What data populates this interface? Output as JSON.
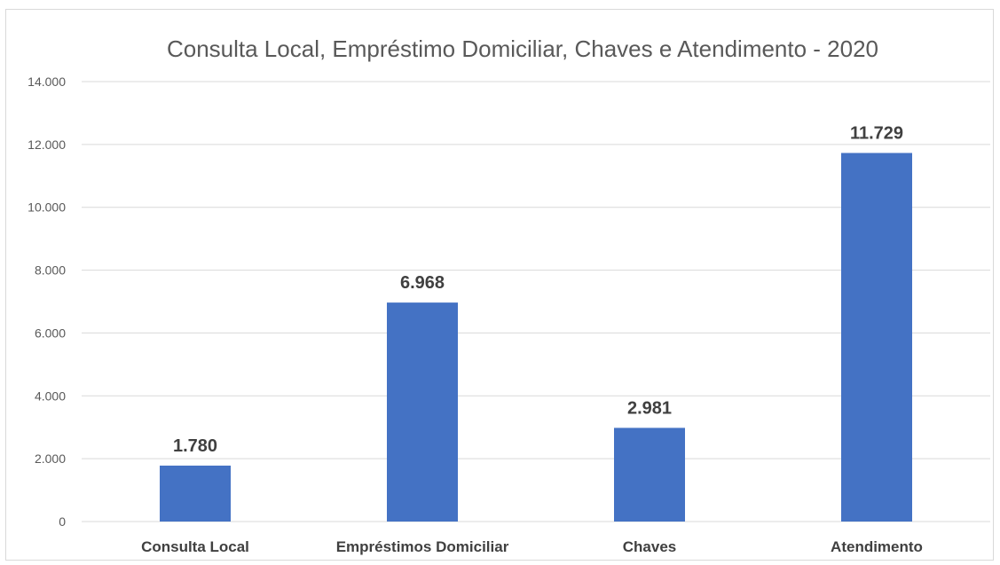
{
  "chart_data": {
    "type": "bar",
    "title": "Consulta Local, Empréstimo Domiciliar, Chaves e Atendimento - 2020",
    "xlabel": "",
    "ylabel": "",
    "categories": [
      "Consulta Local",
      "Empréstimos Domiciliar",
      "Chaves",
      "Atendimento"
    ],
    "values": [
      1780,
      6968,
      2981,
      11729
    ],
    "data_labels": [
      "1.780",
      "6.968",
      "2.981",
      "11.729"
    ],
    "ylim": [
      0,
      14000
    ],
    "yticks": [
      0,
      2000,
      4000,
      6000,
      8000,
      10000,
      12000,
      14000
    ],
    "ytick_labels": [
      "0",
      "2.000",
      "4.000",
      "6.000",
      "8.000",
      "10.000",
      "12.000",
      "14.000"
    ],
    "grid": true,
    "legend": "none",
    "bar_color": "#4472c4",
    "grid_color": "#d9d9d9"
  }
}
